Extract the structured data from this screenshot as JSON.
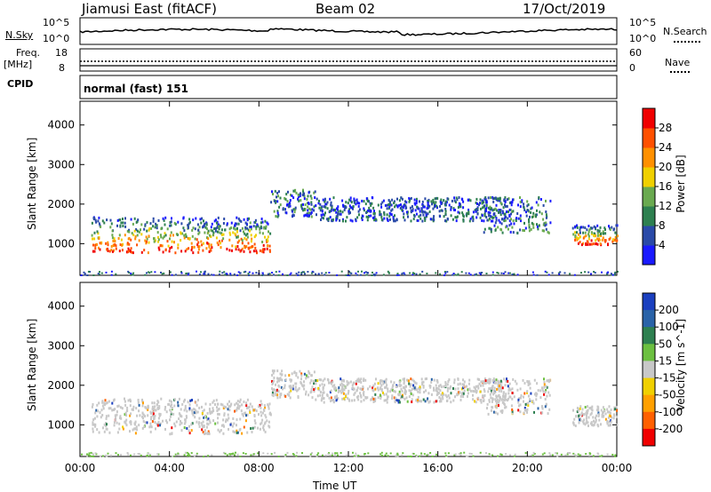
{
  "header": {
    "radar": "Jiamusi East (fitACF)",
    "beam": "Beam 02",
    "date": "17/Oct/2019"
  },
  "status_panels": {
    "nsky": {
      "label": "N.Sky",
      "ticks": [
        "10^5",
        "10^0"
      ]
    },
    "nsearch": {
      "label": "N.Search",
      "ticks": [
        "10^5",
        "10^0"
      ]
    },
    "freq": {
      "label_line1": "Freq.",
      "label_line2": "[MHz]",
      "ticks": [
        "18",
        "8"
      ]
    },
    "nave": {
      "label": "Nave",
      "ticks": [
        "60",
        "0"
      ]
    },
    "cpid": {
      "label": "CPID",
      "value": "normal (fast) 151"
    }
  },
  "chart_data": [
    {
      "type": "heatmap",
      "name": "power",
      "xlabel": "",
      "ylabel": "Slant Range [km]",
      "x_ticks": [
        "00:00",
        "04:00",
        "08:00",
        "12:00",
        "16:00",
        "20:00",
        "00:00"
      ],
      "x_range_hours": [
        0,
        24
      ],
      "y_ticks": [
        1000,
        2000,
        3000,
        4000
      ],
      "ylim": [
        200,
        4600
      ],
      "colorbar": {
        "label": "Power [dB]",
        "ticks": [
          "4",
          "8",
          "12",
          "16",
          "20",
          "24",
          "28"
        ],
        "colors": [
          "#1a1aff",
          "#2a4aa8",
          "#2e8050",
          "#6aaa50",
          "#f0d000",
          "#ff9000",
          "#ff5000",
          "#f00000"
        ]
      },
      "regions": [
        {
          "hours": [
            0.5,
            8.5
          ],
          "range_km": [
            800,
            1700
          ],
          "level": "mixed-high"
        },
        {
          "hours": [
            8.5,
            10.5
          ],
          "range_km": [
            1700,
            2400
          ],
          "level": "medium"
        },
        {
          "hours": [
            10.5,
            19.0
          ],
          "range_km": [
            1600,
            2200
          ],
          "level": "low"
        },
        {
          "hours": [
            18.0,
            21.0
          ],
          "range_km": [
            1300,
            2200
          ],
          "level": "medium"
        },
        {
          "hours": [
            22.0,
            24.0
          ],
          "range_km": [
            1000,
            1500
          ],
          "level": "mixed-high"
        }
      ]
    },
    {
      "type": "heatmap",
      "name": "velocity",
      "xlabel": "Time UT",
      "ylabel": "Slant Range [km]",
      "x_ticks": [
        "00:00",
        "04:00",
        "08:00",
        "12:00",
        "16:00",
        "20:00",
        "00:00"
      ],
      "x_range_hours": [
        0,
        24
      ],
      "y_ticks": [
        1000,
        2000,
        3000,
        4000
      ],
      "ylim": [
        200,
        4600
      ],
      "colorbar": {
        "label": "Velocity [m s^-1]",
        "ticks": [
          "200",
          "100",
          "50",
          "15",
          "-15",
          "-50",
          "-100",
          "-200"
        ],
        "colors": [
          "#1a3fbf",
          "#2a63a8",
          "#2e8050",
          "#6cc040",
          "#c8c8c8",
          "#f0d000",
          "#ffa000",
          "#ff6000",
          "#f00000"
        ]
      },
      "regions": [
        {
          "hours": [
            0.5,
            8.5
          ],
          "range_km": [
            800,
            1700
          ],
          "level": "near-zero"
        },
        {
          "hours": [
            8.5,
            10.5
          ],
          "range_km": [
            1700,
            2400
          ],
          "level": "near-zero"
        },
        {
          "hours": [
            10.5,
            19.0
          ],
          "range_km": [
            1600,
            2200
          ],
          "level": "near-zero"
        },
        {
          "hours": [
            18.0,
            21.0
          ],
          "range_km": [
            1300,
            2200
          ],
          "level": "near-zero"
        },
        {
          "hours": [
            22.0,
            24.0
          ],
          "range_km": [
            1000,
            1500
          ],
          "level": "near-zero"
        }
      ]
    }
  ]
}
